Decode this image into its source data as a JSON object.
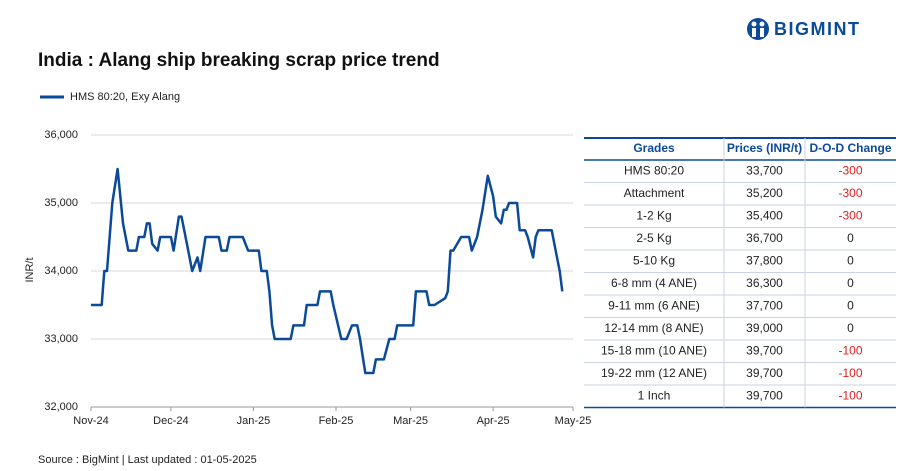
{
  "brand": "BIGMINT",
  "chart_data": {
    "type": "line",
    "title": "India : Alang ship breaking scrap price trend",
    "y_label": "INR/t",
    "source": "Source : BigMint | Last updated : 01-05-2025",
    "series": [
      {
        "name": "HMS 80:20, Exy Alang",
        "color": "#0b4a99",
        "x": [
          0,
          4,
          5,
          6,
          8,
          10,
          12,
          14,
          17,
          18,
          20,
          21,
          22,
          23,
          25,
          26,
          30,
          31,
          33,
          34,
          36,
          38,
          40,
          41,
          43,
          48,
          49,
          51,
          52,
          57,
          59,
          63,
          64,
          66,
          67,
          68,
          69,
          75,
          76,
          80,
          81,
          85,
          86,
          90,
          91,
          94,
          96,
          98,
          100,
          101,
          103,
          106,
          107,
          110,
          112,
          114,
          115,
          121,
          122,
          126,
          127,
          129,
          133,
          134,
          135,
          136,
          139,
          142,
          143,
          145,
          147,
          149,
          151,
          152,
          154,
          155,
          156,
          157,
          160,
          161,
          163,
          164,
          166,
          167,
          168,
          173,
          175,
          176,
          177
        ],
        "values": [
          33500,
          33500,
          34000,
          34000,
          35000,
          35500,
          34700,
          34300,
          34300,
          34500,
          34500,
          34700,
          34700,
          34400,
          34300,
          34500,
          34500,
          34300,
          34800,
          34800,
          34400,
          34000,
          34200,
          34000,
          34500,
          34500,
          34300,
          34300,
          34500,
          34500,
          34300,
          34300,
          34000,
          34000,
          33700,
          33200,
          33000,
          33000,
          33200,
          33200,
          33500,
          33500,
          33700,
          33700,
          33500,
          33000,
          33000,
          33200,
          33200,
          33000,
          32500,
          32500,
          32700,
          32700,
          33000,
          33000,
          33200,
          33200,
          33700,
          33700,
          33500,
          33500,
          33600,
          33700,
          34300,
          34300,
          34500,
          34500,
          34300,
          34500,
          34900,
          35400,
          35100,
          34800,
          34700,
          34900,
          34900,
          35000,
          35000,
          34600,
          34600,
          34500,
          34200,
          34500,
          34600,
          34600,
          34200,
          34000,
          33700
        ]
      }
    ],
    "xlim": [
      0,
      181
    ],
    "xticks": [
      {
        "value": 0,
        "label": "Nov-24"
      },
      {
        "value": 30,
        "label": "Dec-24"
      },
      {
        "value": 61,
        "label": "Jan-25"
      },
      {
        "value": 92,
        "label": "Feb-25"
      },
      {
        "value": 120,
        "label": "Mar-25"
      },
      {
        "value": 151,
        "label": "Apr-25"
      },
      {
        "value": 181,
        "label": "May-25"
      }
    ],
    "ylim": [
      32000,
      36000
    ],
    "yticks": [
      {
        "value": 32000,
        "label": "32,000"
      },
      {
        "value": 33000,
        "label": "33,000"
      },
      {
        "value": 34000,
        "label": "34,000"
      },
      {
        "value": 35000,
        "label": "35,000"
      },
      {
        "value": 36000,
        "label": "36,000"
      }
    ],
    "grid": true
  },
  "table": {
    "header": [
      "Grades",
      "Prices (INR/t)",
      "D-O-D Change"
    ],
    "rows": [
      [
        "HMS 80:20",
        "33,700",
        "-300"
      ],
      [
        "Attachment",
        "35,200",
        "-300"
      ],
      [
        "1-2 Kg",
        "35,400",
        "-300"
      ],
      [
        "2-5 Kg",
        "36,700",
        "0"
      ],
      [
        "5-10 Kg",
        "37,800",
        "0"
      ],
      [
        "6-8 mm (4 ANE)",
        "36,300",
        "0"
      ],
      [
        "9-11 mm (6 ANE)",
        "37,700",
        "0"
      ],
      [
        "12-14 mm (8 ANE)",
        "39,000",
        "0"
      ],
      [
        "15-18 mm (10 ANE)",
        "39,700",
        "-100"
      ],
      [
        "19-22 mm (12 ANE)",
        "39,700",
        "-100"
      ],
      [
        "1 Inch",
        "39,700",
        "-100"
      ]
    ]
  }
}
